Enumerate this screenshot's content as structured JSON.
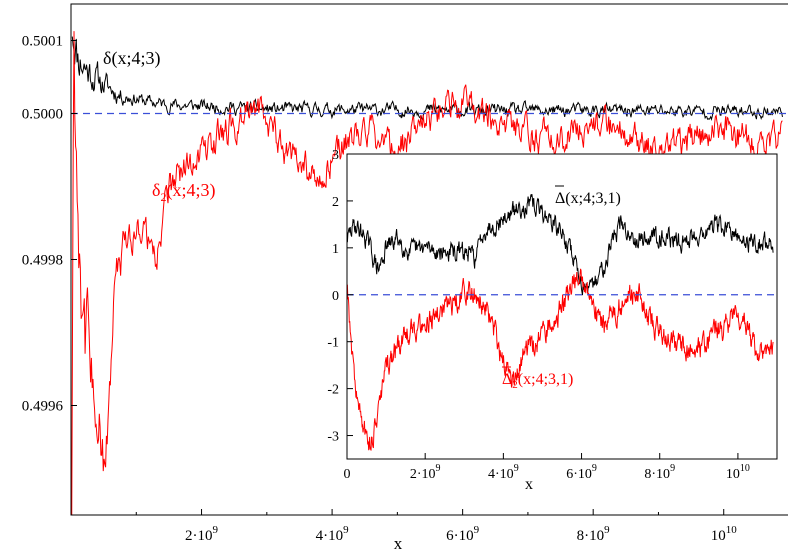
{
  "chart_data": [
    {
      "type": "line",
      "role": "main",
      "xlabel": "x",
      "ylabel": "",
      "xlim": [
        0,
        11000000000
      ],
      "ylim": [
        0.49945,
        0.50015
      ],
      "xticks": [
        {
          "value": 2000000000,
          "mantissa": "2·10",
          "exp": "9"
        },
        {
          "value": 4000000000,
          "mantissa": "4·10",
          "exp": "9"
        },
        {
          "value": 6000000000,
          "mantissa": "6·10",
          "exp": "9"
        },
        {
          "value": 8000000000,
          "mantissa": "8·10",
          "exp": "9"
        },
        {
          "value": 10000000000,
          "mantissa": "10",
          "exp": "10"
        }
      ],
      "yticks": [
        {
          "value": 0.4996,
          "label": "0.4996"
        },
        {
          "value": 0.4998,
          "label": "0.4998"
        },
        {
          "value": 0.5,
          "label": "0.5000"
        },
        {
          "value": 0.5001,
          "label": "0.5001"
        }
      ],
      "reference_line": {
        "y": 0.5,
        "color": "#3b4fd8",
        "style": "dashed"
      },
      "series": [
        {
          "label_main": "δ(x;4;3)",
          "label_sub": "",
          "color": "#000000",
          "x": [
            20000000,
            100000000,
            250000000,
            500000000,
            750000000,
            1000000000,
            1250000000,
            1500000000,
            2000000000,
            2500000000,
            3000000000,
            3500000000,
            4000000000,
            5000000000,
            6000000000,
            7000000000,
            8000000000,
            9000000000,
            10000000000,
            10900000000
          ],
          "y": [
            0.50012,
            0.50008,
            0.50006,
            0.50004,
            0.500025,
            0.50002,
            0.500015,
            0.500012,
            0.50001,
            0.500008,
            0.500006,
            0.500006,
            0.500005,
            0.500005,
            0.500004,
            0.500004,
            0.500004,
            0.500004,
            0.500003,
            0.500003
          ],
          "noise": 7e-06
        },
        {
          "label_main": "δ",
          "label_sub": "2",
          "label_rest": "(x;4;3)",
          "color": "#ff0000",
          "x": [
            10000000,
            40000000,
            100000000,
            200000000,
            350000000,
            500000000,
            700000000,
            900000000,
            1100000000,
            1300000000,
            1500000000,
            1700000000,
            2000000000,
            2300000000,
            2600000000,
            2900000000,
            3200000000,
            3500000000,
            3800000000,
            4100000000,
            4500000000,
            5000000000,
            5500000000,
            6000000000,
            6200000000,
            6500000000,
            7000000000,
            7500000000,
            8000000000,
            8500000000,
            9000000000,
            9500000000,
            10000000000,
            10500000000,
            10900000000
          ],
          "y": [
            0.49945,
            0.5001,
            0.4999,
            0.4997,
            0.49965,
            0.4995,
            0.49978,
            0.49983,
            0.49985,
            0.4998,
            0.4999,
            0.49992,
            0.49995,
            0.49997,
            0.49999,
            0.50001,
            0.49996,
            0.49993,
            0.49991,
            0.49995,
            0.49998,
            0.49995,
            0.49999,
            0.50002,
            0.50001,
            0.49999,
            0.49997,
            0.49996,
            0.49999,
            0.49997,
            0.49995,
            0.49996,
            0.49998,
            0.49996,
            0.49997
          ],
          "noise": 1.8e-05
        }
      ]
    },
    {
      "type": "line",
      "role": "inset",
      "xlabel": "x",
      "ylabel": "",
      "xlim": [
        0,
        11000000000
      ],
      "ylim": [
        -3.5,
        3
      ],
      "xticks": [
        {
          "value": 0,
          "mantissa": "0",
          "exp": ""
        },
        {
          "value": 2000000000,
          "mantissa": "2·10",
          "exp": "9"
        },
        {
          "value": 4000000000,
          "mantissa": "4·10",
          "exp": "9"
        },
        {
          "value": 6000000000,
          "mantissa": "6·10",
          "exp": "9"
        },
        {
          "value": 8000000000,
          "mantissa": "8·10",
          "exp": "9"
        },
        {
          "value": 10000000000,
          "mantissa": "10",
          "exp": "10"
        }
      ],
      "yticks": [
        {
          "value": -3,
          "label": "-3"
        },
        {
          "value": -2,
          "label": "-2"
        },
        {
          "value": -1,
          "label": "-1"
        },
        {
          "value": 0,
          "label": "0"
        },
        {
          "value": 1,
          "label": "1"
        },
        {
          "value": 2,
          "label": "2"
        },
        {
          "value": 3,
          "label": "3"
        }
      ],
      "reference_line": {
        "y": 0,
        "color": "#3b4fd8",
        "style": "dashed"
      },
      "series": [
        {
          "label_main": "Δ",
          "label_sub": "",
          "label_rest": "(x;4;3,1)",
          "color": "#000000",
          "x": [
            10000000,
            200000000,
            500000000,
            800000000,
            1000000000,
            1300000000,
            1600000000,
            2000000000,
            2500000000,
            3000000000,
            3300000000,
            3500000000,
            4000000000,
            4500000000,
            4800000000,
            5200000000,
            5500000000,
            5800000000,
            6000000000,
            6200000000,
            6500000000,
            6800000000,
            7000000000,
            7200000000,
            7600000000,
            8000000000,
            8500000000,
            9000000000,
            9500000000,
            10000000000,
            10500000000,
            10900000000
          ],
          "y": [
            1.2,
            1.5,
            1.2,
            0.5,
            1.0,
            1.2,
            0.9,
            1.0,
            0.9,
            0.9,
            0.8,
            1.4,
            1.6,
            1.9,
            1.9,
            1.6,
            1.3,
            0.8,
            0.3,
            0.0,
            0.5,
            1.2,
            1.5,
            1.3,
            1.2,
            1.3,
            1.1,
            1.3,
            1.5,
            1.2,
            1.1,
            1.1
          ],
          "noise": 0.16
        },
        {
          "label_main": "Δ",
          "label_sub": "2",
          "label_rest": "(x;4;3,1)",
          "color": "#ff0000",
          "x": [
            10000000,
            100000000,
            250000000,
            400000000,
            600000000,
            800000000,
            1000000000,
            1300000000,
            1600000000,
            2000000000,
            2400000000,
            2800000000,
            3200000000,
            3600000000,
            4000000000,
            4300000000,
            4600000000,
            5000000000,
            5400000000,
            5800000000,
            6000000000,
            6300000000,
            6600000000,
            7000000000,
            7400000000,
            7800000000,
            8200000000,
            8500000000,
            9000000000,
            9500000000,
            10000000000,
            10500000000,
            10900000000
          ],
          "y": [
            0.3,
            -1.0,
            -2.2,
            -2.8,
            -3.2,
            -2.5,
            -1.6,
            -1.1,
            -0.8,
            -0.6,
            -0.4,
            -0.1,
            0.1,
            -0.3,
            -1.5,
            -1.8,
            -1.1,
            -0.9,
            -0.4,
            0.3,
            0.4,
            -0.2,
            -0.6,
            -0.2,
            0.1,
            -0.6,
            -0.9,
            -1.1,
            -1.2,
            -0.8,
            -0.4,
            -1.2,
            -1.1
          ],
          "noise": 0.2
        }
      ]
    }
  ]
}
